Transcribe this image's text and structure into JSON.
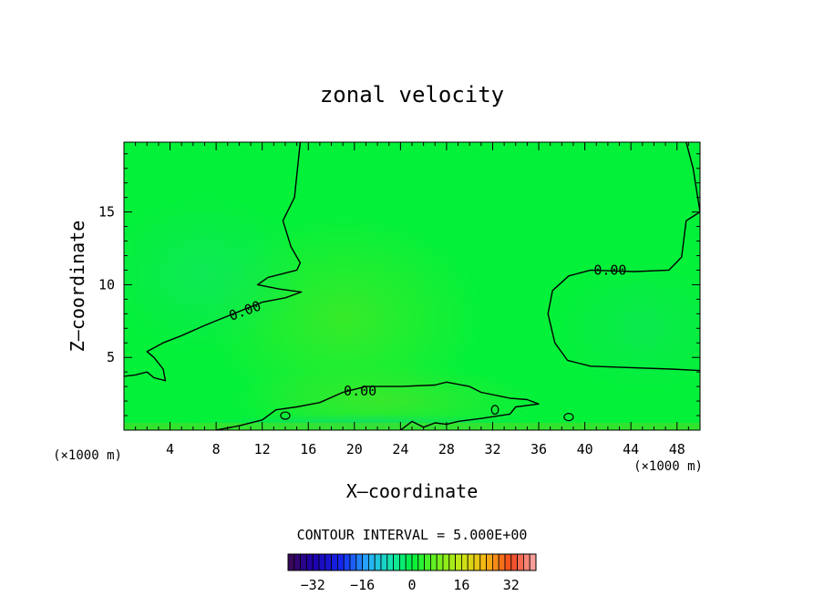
{
  "chart_data": {
    "type": "heatmap",
    "title": "zonal velocity",
    "xlabel": "X—coordinate",
    "ylabel": "Z—coordinate",
    "x_units": "(×1000 m)",
    "xlim": [
      0,
      50
    ],
    "ylim": [
      0,
      19.8
    ],
    "x_ticks": [
      4,
      8,
      12,
      16,
      20,
      24,
      28,
      32,
      36,
      40,
      44,
      48
    ],
    "y_ticks": [
      5,
      10,
      15
    ],
    "contour_value_label": "0.00",
    "contour_interval_label": "CONTOUR INTERVAL = 5.000E+00",
    "colorbar": {
      "min": -40,
      "max": 40,
      "ticks": [
        -32,
        -16,
        0,
        16,
        32
      ]
    },
    "contours_zero": [
      {
        "name": "upper-left",
        "points": [
          [
            15.3,
            19.8
          ],
          [
            14.8,
            16.0
          ],
          [
            13.8,
            14.4
          ],
          [
            14.5,
            12.6
          ],
          [
            15.3,
            11.5
          ],
          [
            15.0,
            11.0
          ],
          [
            12.5,
            10.5
          ],
          [
            11.6,
            10.0
          ],
          [
            13.5,
            9.7
          ],
          [
            15.4,
            9.5
          ],
          [
            14.0,
            9.1
          ],
          [
            12.0,
            8.8
          ],
          [
            9.5,
            8.0
          ],
          [
            7.0,
            7.2
          ],
          [
            5.0,
            6.5
          ],
          [
            3.4,
            6.0
          ],
          [
            2.0,
            5.4
          ],
          [
            2.6,
            5.0
          ],
          [
            3.4,
            4.2
          ],
          [
            3.6,
            3.4
          ],
          [
            2.6,
            3.6
          ],
          [
            2.0,
            4.0
          ],
          [
            1.0,
            3.8
          ],
          [
            0.0,
            3.7
          ]
        ]
      },
      {
        "name": "right",
        "points": [
          [
            48.8,
            19.8
          ],
          [
            49.4,
            18.0
          ],
          [
            50.0,
            15.0
          ],
          [
            48.8,
            14.4
          ],
          [
            48.4,
            11.9
          ],
          [
            47.3,
            11.0
          ],
          [
            44.3,
            10.9
          ],
          [
            40.5,
            11.0
          ],
          [
            38.6,
            10.6
          ],
          [
            37.2,
            9.6
          ],
          [
            36.8,
            8.0
          ],
          [
            37.4,
            6.0
          ],
          [
            38.5,
            4.8
          ],
          [
            40.5,
            4.4
          ],
          [
            44.0,
            4.3
          ],
          [
            47.5,
            4.2
          ],
          [
            50.0,
            4.1
          ]
        ]
      },
      {
        "name": "lower-band",
        "points": [
          [
            8.0,
            0.0
          ],
          [
            10.0,
            0.3
          ],
          [
            12.0,
            0.7
          ],
          [
            13.2,
            1.4
          ],
          [
            15.0,
            1.6
          ],
          [
            17.0,
            1.9
          ],
          [
            19.0,
            2.6
          ],
          [
            21.0,
            3.0
          ],
          [
            24.0,
            3.0
          ],
          [
            27.0,
            3.1
          ],
          [
            28.0,
            3.3
          ],
          [
            30.0,
            3.0
          ],
          [
            31.0,
            2.6
          ],
          [
            33.5,
            2.2
          ],
          [
            35.0,
            2.1
          ],
          [
            36.0,
            1.8
          ],
          [
            34.0,
            1.6
          ],
          [
            33.5,
            1.1
          ],
          [
            31.0,
            0.8
          ],
          [
            29.0,
            0.6
          ],
          [
            28.0,
            0.4
          ],
          [
            27.0,
            0.5
          ],
          [
            26.0,
            0.2
          ],
          [
            25.0,
            0.6
          ],
          [
            24.0,
            0.0
          ]
        ]
      }
    ],
    "contour_islands": [
      {
        "x": 14.0,
        "y": 1.0,
        "rx": 0.4,
        "ry": 0.25
      },
      {
        "x": 32.2,
        "y": 1.4,
        "rx": 0.3,
        "ry": 0.3
      },
      {
        "x": 38.6,
        "y": 0.9,
        "rx": 0.4,
        "ry": 0.25
      }
    ],
    "contour_labels": [
      {
        "text": "0.00",
        "x": 10.5,
        "y": 8.2,
        "angle": -20
      },
      {
        "text": "0.00",
        "x": 20.5,
        "y": 2.7,
        "angle": 0
      },
      {
        "text": "0.00",
        "x": 42.2,
        "y": 11.0,
        "angle": 0
      }
    ],
    "colors": {
      "background_field": "#04f13a",
      "contour_line": "#000000"
    }
  }
}
